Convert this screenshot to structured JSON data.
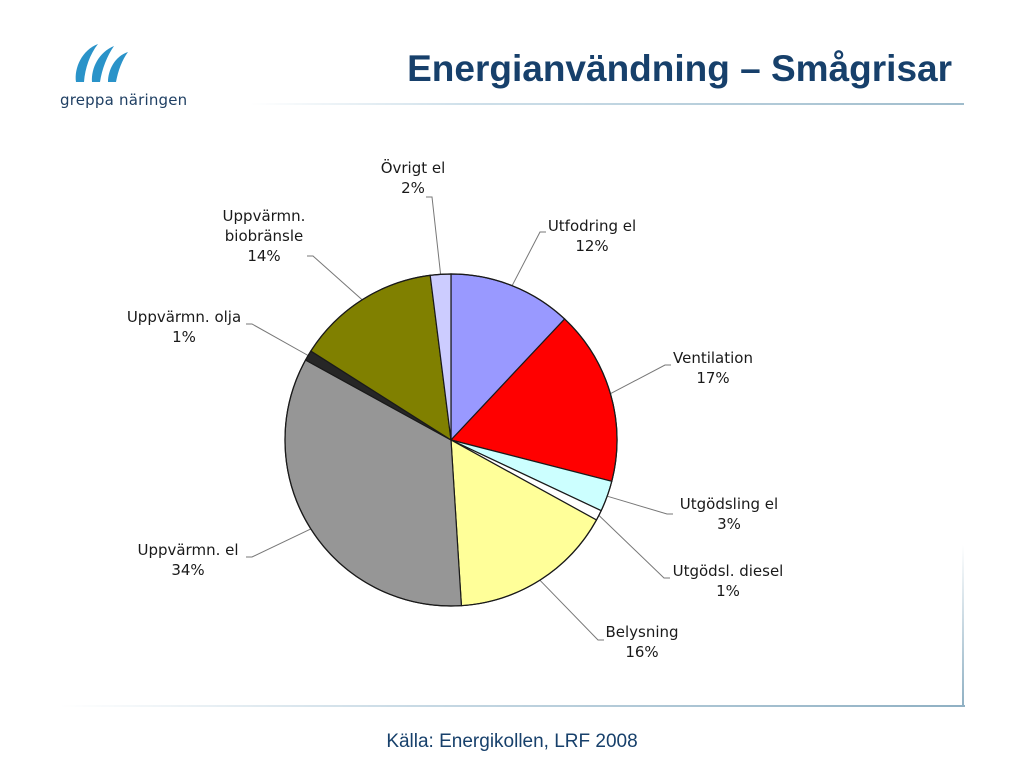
{
  "brand": {
    "name": "greppa näringen"
  },
  "slide": {
    "title": "Energianvändning – Smågrisar",
    "source": "Källa: Energikollen, LRF 2008"
  },
  "chart_data": {
    "type": "pie",
    "title": "",
    "unit": "%",
    "slices": [
      {
        "label_lines": [
          "Utfodring el"
        ],
        "value": 12,
        "value_text": "12%",
        "color": "#9999ff"
      },
      {
        "label_lines": [
          "Ventilation"
        ],
        "value": 17,
        "value_text": "17%",
        "color": "#ff0000"
      },
      {
        "label_lines": [
          "Utgödsling el"
        ],
        "value": 3,
        "value_text": "3%",
        "color": "#ccffff"
      },
      {
        "label_lines": [
          "Utgödsl. diesel"
        ],
        "value": 1,
        "value_text": "1%",
        "color": "#ffffff"
      },
      {
        "label_lines": [
          "Belysning"
        ],
        "value": 16,
        "value_text": "16%",
        "color": "#ffff99"
      },
      {
        "label_lines": [
          "Uppvärmn. el"
        ],
        "value": 34,
        "value_text": "34%",
        "color": "#969696"
      },
      {
        "label_lines": [
          "Uppvärmn. olja"
        ],
        "value": 1,
        "value_text": "1%",
        "color": "#262626"
      },
      {
        "label_lines": [
          "Uppvärmn.",
          "biobränsle"
        ],
        "value": 14,
        "value_text": "14%",
        "color": "#808000"
      },
      {
        "label_lines": [
          "Övrigt el"
        ],
        "value": 2,
        "value_text": "2%",
        "color": "#ccccff"
      }
    ]
  }
}
